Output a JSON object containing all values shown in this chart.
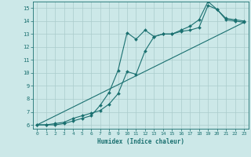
{
  "xlabel": "Humidex (Indice chaleur)",
  "ylabel": "",
  "bg_color": "#cce8e8",
  "grid_color": "#aacccc",
  "line_color": "#1a7070",
  "xlim": [
    -0.5,
    23.5
  ],
  "ylim": [
    5.7,
    15.5
  ],
  "xticks": [
    0,
    1,
    2,
    3,
    4,
    5,
    6,
    7,
    8,
    9,
    10,
    11,
    12,
    13,
    14,
    15,
    16,
    17,
    18,
    19,
    20,
    21,
    22,
    23
  ],
  "yticks": [
    6,
    7,
    8,
    9,
    10,
    11,
    12,
    13,
    14,
    15
  ],
  "line1_x": [
    0,
    1,
    2,
    3,
    4,
    5,
    6,
    7,
    8,
    9,
    10,
    11,
    12,
    13,
    14,
    15,
    16,
    17,
    18,
    19,
    20,
    21,
    22,
    23
  ],
  "line1_y": [
    6,
    6,
    6,
    6.1,
    6.3,
    6.5,
    6.7,
    7.5,
    8.5,
    10.2,
    13.1,
    12.6,
    13.3,
    12.8,
    13.0,
    13.0,
    13.2,
    13.3,
    13.5,
    15.2,
    14.9,
    14.1,
    14.0,
    13.9
  ],
  "line2_x": [
    0,
    1,
    2,
    3,
    4,
    5,
    6,
    7,
    8,
    9,
    10,
    11,
    12,
    13,
    14,
    15,
    16,
    17,
    18,
    19,
    20,
    21,
    22,
    23
  ],
  "line2_y": [
    6,
    6,
    6.1,
    6.2,
    6.5,
    6.7,
    6.9,
    7.1,
    7.6,
    8.4,
    10.1,
    9.9,
    11.7,
    12.8,
    13.0,
    13.0,
    13.3,
    13.6,
    14.1,
    15.5,
    14.9,
    14.2,
    14.1,
    14.0
  ],
  "line3_x": [
    0,
    23
  ],
  "line3_y": [
    6,
    13.9
  ]
}
